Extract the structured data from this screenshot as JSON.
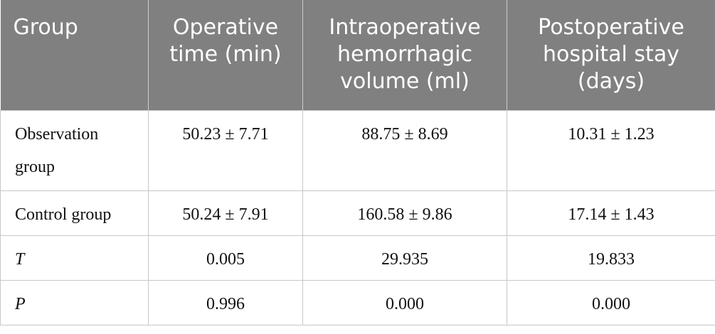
{
  "table": {
    "header": [
      [
        "Group"
      ],
      [
        "Operative",
        "time (min)"
      ],
      [
        "Intraoperative",
        "hemorrhagic",
        "volume (ml)"
      ],
      [
        "Postoperative",
        "hospital stay",
        "(days)"
      ]
    ],
    "rows": [
      [
        "Observation group",
        "50.23 ± 7.71",
        "88.75 ± 8.69",
        "10.31 ± 1.23"
      ],
      [
        "Control group",
        "50.24 ± 7.91",
        "160.58 ± 9.86",
        "17.14 ± 1.43"
      ],
      [
        "T",
        "0.005",
        "29.935",
        "19.833"
      ],
      [
        "P",
        "0.996",
        "0.000",
        "0.000"
      ]
    ]
  }
}
